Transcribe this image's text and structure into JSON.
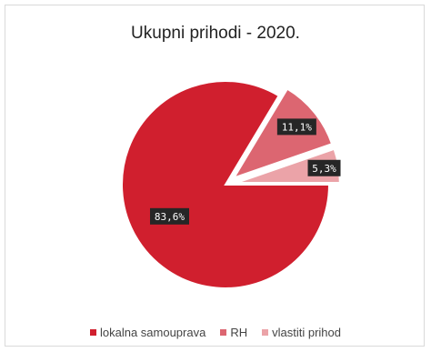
{
  "chart_data": {
    "type": "pie",
    "title": "Ukupni prihodi - 2020.",
    "categories": [
      "lokalna samouprava",
      "RH",
      "vlastiti prihod"
    ],
    "values": [
      83.6,
      11.1,
      5.3
    ],
    "data_labels": [
      "83,6%",
      "11,1%",
      "5,3%"
    ],
    "colors": [
      "#d01f2e",
      "#dc6671",
      "#eba3a8"
    ],
    "legend_position": "bottom",
    "label_box_color": "#262626",
    "label_text_color": "#ffffff"
  }
}
